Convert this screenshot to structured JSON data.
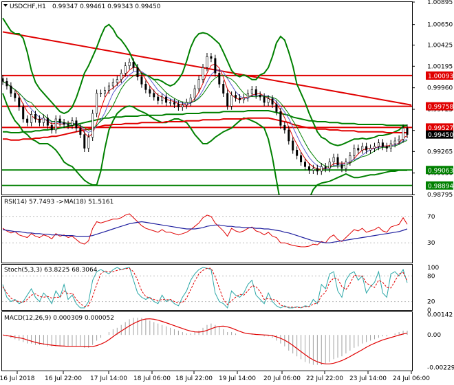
{
  "main_header": {
    "symbol": "USDCHF,H1",
    "values": "0.99347 0.99461 0.99343 0.99450"
  },
  "rsi_header": "RSI(14) 57.7493 ->MA(18) 51.5161",
  "stoch_header": "Stoch(5,3,3) 63.8225 68.3064",
  "macd_header": "MACD(12,26,9) 0.000309 0.000052",
  "colors": {
    "red": "#e00000",
    "green": "#008000",
    "black": "#000000",
    "blue": "#1f1f9f",
    "teal": "#2aa7a7"
  },
  "chart_data": [
    {
      "type": "line",
      "name": "price",
      "title": "USDCHF,H1 0.99347 0.99461 0.99343 0.99450",
      "y_ticks": [
        "1.00895",
        "1.00650",
        "1.00425",
        "1.00195",
        "0.99960",
        "0.99725",
        "0.99495",
        "0.99265",
        "0.99030",
        "0.98795"
      ],
      "ylim": [
        0.98795,
        1.00895
      ],
      "x_ticks": [
        "16 Jul 2018",
        "16 Jul 22:00",
        "17 Jul 14:00",
        "18 Jul 06:00",
        "18 Jul 22:00",
        "19 Jul 14:00",
        "20 Jul 06:00",
        "22 Jul 22:00",
        "23 Jul 14:00",
        "24 Jul 06:00"
      ],
      "price_tags": [
        {
          "value": "1.00093",
          "color": "#e00000"
        },
        {
          "value": "0.99758",
          "color": "#e00000"
        },
        {
          "value": "0.99527",
          "color": "#e00000"
        },
        {
          "value": "0.99450",
          "color": "#000000"
        },
        {
          "value": "0.99063",
          "color": "#008000"
        },
        {
          "value": "0.98894",
          "color": "#008000"
        }
      ],
      "horizontal_levels": [
        {
          "y": 1.00093,
          "color": "#e00000"
        },
        {
          "y": 0.99758,
          "color": "#e00000"
        },
        {
          "y": 0.99527,
          "color": "#e00000"
        },
        {
          "y": 0.99063,
          "color": "#008000"
        },
        {
          "y": 0.98894,
          "color": "#008000"
        }
      ],
      "trend_line": {
        "x": [
          0,
          100
        ],
        "y": [
          1.0057,
          0.9978
        ],
        "color": "#e00000"
      },
      "close": [
        1.0003,
        0.9998,
        0.999,
        0.9985,
        0.9975,
        0.9962,
        0.9958,
        0.9967,
        0.9962,
        0.9958,
        0.9963,
        0.9955,
        0.995,
        0.9962,
        0.9958,
        0.9956,
        0.9955,
        0.996,
        0.9952,
        0.9945,
        0.993,
        0.9942,
        0.9968,
        0.999,
        0.999,
        0.9993,
        0.9998,
        1.0002,
        1.0005,
        1.0012,
        1.002,
        1.0024,
        1.0018,
        1.0008,
        1.0,
        0.9994,
        0.999,
        0.9986,
        0.9982,
        0.9986,
        0.998,
        0.998,
        0.9978,
        0.9975,
        0.9977,
        0.998,
        0.9985,
        0.9995,
        1.0005,
        1.0018,
        1.003,
        1.0028,
        1.0012,
        1.0,
        0.999,
        0.9976,
        0.9988,
        0.9985,
        0.9983,
        0.9985,
        0.999,
        0.9994,
        0.9988,
        0.9986,
        0.998,
        0.9984,
        0.9978,
        0.997,
        0.9955,
        0.995,
        0.9938,
        0.9928,
        0.9922,
        0.9915,
        0.991,
        0.9906,
        0.9908,
        0.9905,
        0.991,
        0.9908,
        0.9915,
        0.992,
        0.9912,
        0.9908,
        0.9915,
        0.9922,
        0.993,
        0.9928,
        0.9932,
        0.9928,
        0.993,
        0.9932,
        0.9936,
        0.9932,
        0.993,
        0.9935,
        0.9938,
        0.994,
        0.9952,
        0.9945
      ],
      "bb_upper": [
        1.0072,
        1.0065,
        1.0058,
        1.0055,
        1.0055,
        1.005,
        1.0035,
        1.0015,
        1.0002,
        0.9995,
        0.999,
        0.9985,
        0.998,
        0.9975,
        0.997,
        0.9968,
        0.997,
        0.9975,
        0.9985,
        0.9998,
        1.0012,
        1.002,
        1.003,
        1.004,
        1.0052,
        1.0062,
        1.0065,
        1.006,
        1.0052,
        1.0048,
        1.0042,
        1.0035,
        1.0025,
        1.0018,
        1.0012,
        1.001,
        1.0008,
        1.0005,
        1.0005,
        1.0003,
        1.0,
        0.9998,
        1.0,
        1.0005,
        1.0012,
        1.0025,
        1.004,
        1.005,
        1.0055,
        1.0056,
        1.0055,
        1.0052,
        1.0048,
        1.0044,
        1.0035,
        1.0025,
        1.0015,
        1.001,
        1.0008,
        1.001,
        1.0008,
        1.0005,
        1.0005,
        1.001,
        1.0012,
        1.0018,
        1.003,
        1.0045,
        1.0052,
        1.0048,
        1.0035,
        1.002,
        1.0,
        0.999,
        0.998,
        0.9968,
        0.9958,
        0.9948,
        0.9942,
        0.994,
        0.9936,
        0.9934,
        0.9933,
        0.9934,
        0.9936,
        0.9938,
        0.994,
        0.994,
        0.9941,
        0.994,
        0.9941,
        0.9942,
        0.9944,
        0.9944,
        0.9945,
        0.9946,
        0.9948,
        0.995,
        0.9954,
        0.9955
      ],
      "bb_lower": [
        0.999,
        0.9978,
        0.9968,
        0.996,
        0.9955,
        0.9948,
        0.9945,
        0.994,
        0.9938,
        0.9935,
        0.9935,
        0.9935,
        0.9932,
        0.9928,
        0.9922,
        0.9915,
        0.9912,
        0.991,
        0.9905,
        0.99,
        0.9895,
        0.9892,
        0.989,
        0.989,
        0.9905,
        0.993,
        0.995,
        0.996,
        0.9968,
        0.9972,
        0.9975,
        0.9976,
        0.9975,
        0.9972,
        0.997,
        0.9968,
        0.9965,
        0.9962,
        0.996,
        0.9958,
        0.9958,
        0.996,
        0.9962,
        0.9962,
        0.996,
        0.9958,
        0.9952,
        0.9945,
        0.994,
        0.9935,
        0.9935,
        0.9938,
        0.9942,
        0.9945,
        0.9948,
        0.995,
        0.9952,
        0.9956,
        0.996,
        0.9963,
        0.9962,
        0.996,
        0.9958,
        0.9955,
        0.9952,
        0.994,
        0.992,
        0.9895,
        0.987,
        0.9855,
        0.9845,
        0.984,
        0.9838,
        0.9845,
        0.986,
        0.9875,
        0.9885,
        0.989,
        0.9892,
        0.9893,
        0.9894,
        0.9896,
        0.9898,
        0.99,
        0.9902,
        0.99,
        0.9898,
        0.9898,
        0.9899,
        0.99,
        0.9901,
        0.9901,
        0.9902,
        0.9903,
        0.9904,
        0.9905,
        0.9905,
        0.9906,
        0.9906,
        0.9906
      ],
      "ma_long": [
        0.9948,
        0.9948,
        0.9947,
        0.9947,
        0.9947,
        0.9948,
        0.9948,
        0.9948,
        0.9949,
        0.9949,
        0.995,
        0.995,
        0.9951,
        0.9951,
        0.9952,
        0.9953,
        0.9954,
        0.9955,
        0.9956,
        0.9957,
        0.9958,
        0.9959,
        0.996,
        0.9961,
        0.9962,
        0.9963,
        0.9963,
        0.9964,
        0.9964,
        0.9964,
        0.9965,
        0.9965,
        0.9965,
        0.9965,
        0.9966,
        0.9966,
        0.9966,
        0.9966,
        0.9966,
        0.9966,
        0.9967,
        0.9967,
        0.9967,
        0.9967,
        0.9967,
        0.9968,
        0.9968,
        0.9968,
        0.9968,
        0.9969,
        0.9969,
        0.9969,
        0.9969,
        0.9969,
        0.997,
        0.997,
        0.997,
        0.997,
        0.997,
        0.997,
        0.9971,
        0.9971,
        0.9971,
        0.9971,
        0.9971,
        0.9971,
        0.997,
        0.9969,
        0.9968,
        0.9967,
        0.9966,
        0.9964,
        0.9963,
        0.9962,
        0.9961,
        0.996,
        0.996,
        0.9959,
        0.9959,
        0.9959,
        0.9958,
        0.9958,
        0.9958,
        0.9957,
        0.9957,
        0.9957,
        0.9957,
        0.9956,
        0.9956,
        0.9956,
        0.9956,
        0.9956,
        0.9956,
        0.9956,
        0.9955,
        0.9955,
        0.9955,
        0.9955,
        0.9955,
        0.9955
      ]
    },
    {
      "type": "line",
      "name": "rsi",
      "title": "RSI(14) 57.7493 ->MA(18) 51.5161",
      "y_ticks": [
        "70",
        "30"
      ],
      "ylim": [
        0,
        100
      ],
      "rsi": [
        52,
        48,
        45,
        47,
        42,
        40,
        38,
        44,
        40,
        38,
        42,
        40,
        36,
        44,
        40,
        42,
        38,
        40,
        35,
        30,
        28,
        33,
        52,
        62,
        60,
        62,
        64,
        66,
        66,
        68,
        72,
        74,
        68,
        62,
        56,
        52,
        50,
        48,
        46,
        50,
        46,
        46,
        44,
        42,
        44,
        46,
        50,
        55,
        60,
        68,
        72,
        70,
        60,
        54,
        48,
        40,
        52,
        48,
        46,
        48,
        52,
        54,
        48,
        46,
        42,
        46,
        40,
        38,
        30,
        30,
        28,
        26,
        25,
        24,
        24,
        25,
        28,
        27,
        32,
        30,
        38,
        42,
        35,
        32,
        38,
        44,
        50,
        48,
        52,
        46,
        48,
        50,
        54,
        48,
        46,
        54,
        56,
        58,
        68,
        58
      ],
      "rsi_ma": [
        50,
        49,
        48,
        47,
        47,
        46,
        45,
        45,
        44,
        44,
        43,
        43,
        42,
        42,
        42,
        41,
        41,
        41,
        40,
        40,
        40,
        40,
        41,
        43,
        45,
        47,
        49,
        51,
        53,
        55,
        57,
        59,
        60,
        61,
        62,
        61,
        60,
        59,
        58,
        57,
        56,
        55,
        54,
        53,
        52,
        51,
        51,
        51,
        52,
        53,
        55,
        56,
        57,
        57,
        56,
        55,
        55,
        54,
        54,
        53,
        53,
        53,
        52,
        52,
        51,
        51,
        50,
        49,
        48,
        46,
        45,
        43,
        41,
        39,
        37,
        35,
        33,
        32,
        31,
        30,
        30,
        31,
        32,
        33,
        34,
        35,
        36,
        37,
        38,
        39,
        40,
        41,
        42,
        43,
        44,
        45,
        46,
        47,
        49,
        51
      ]
    },
    {
      "type": "line",
      "name": "stochastic",
      "title": "Stoch(5,3,3) 63.8225 68.3064",
      "y_ticks": [
        "100",
        "80",
        "20",
        "0"
      ],
      "ylim": [
        0,
        100
      ],
      "k": [
        60,
        30,
        20,
        25,
        15,
        20,
        35,
        50,
        30,
        20,
        40,
        30,
        15,
        45,
        30,
        60,
        25,
        35,
        15,
        5,
        5,
        20,
        70,
        90,
        95,
        90,
        85,
        95,
        100,
        95,
        98,
        100,
        70,
        40,
        30,
        25,
        30,
        20,
        15,
        35,
        20,
        25,
        15,
        10,
        30,
        45,
        70,
        85,
        95,
        100,
        98,
        95,
        40,
        20,
        15,
        5,
        45,
        35,
        30,
        40,
        60,
        70,
        35,
        25,
        15,
        40,
        20,
        10,
        5,
        10,
        5,
        5,
        8,
        5,
        10,
        8,
        25,
        15,
        60,
        50,
        85,
        90,
        45,
        30,
        70,
        85,
        90,
        70,
        80,
        40,
        55,
        65,
        90,
        40,
        30,
        85,
        90,
        80,
        95,
        64
      ],
      "d": [
        55,
        40,
        28,
        22,
        20,
        18,
        25,
        35,
        38,
        32,
        30,
        32,
        28,
        30,
        30,
        45,
        38,
        40,
        25,
        15,
        8,
        10,
        32,
        60,
        85,
        92,
        90,
        90,
        93,
        95,
        97,
        98,
        90,
        70,
        45,
        32,
        28,
        25,
        22,
        25,
        24,
        25,
        20,
        16,
        18,
        28,
        48,
        68,
        85,
        93,
        98,
        98,
        78,
        52,
        25,
        13,
        22,
        30,
        37,
        35,
        45,
        57,
        55,
        43,
        25,
        27,
        25,
        23,
        12,
        8,
        7,
        7,
        6,
        6,
        8,
        8,
        14,
        16,
        33,
        42,
        65,
        75,
        73,
        55,
        48,
        62,
        82,
        80,
        80,
        63,
        58,
        53,
        70,
        65,
        53,
        52,
        68,
        85,
        88,
        68
      ]
    },
    {
      "type": "bar",
      "name": "macd",
      "title": "MACD(12,26,9) 0.000309 0.000052",
      "y_ticks": [
        "0.00142",
        "0.00",
        "-0.00229"
      ],
      "ylim": [
        -0.0025,
        0.0016
      ],
      "macd": [
        0.0,
        -0.0001,
        -0.0002,
        -0.0003,
        -0.0004,
        -0.0005,
        -0.0006,
        -0.0006,
        -0.0007,
        -0.0007,
        -0.0007,
        -0.0008,
        -0.0008,
        -0.0008,
        -0.0008,
        -0.0008,
        -0.0008,
        -0.0008,
        -0.0008,
        -0.0008,
        -0.0009,
        -0.0009,
        -0.0007,
        -0.0004,
        -0.0002,
        0.0,
        0.0002,
        0.0004,
        0.0005,
        0.0007,
        0.0009,
        0.0011,
        0.0012,
        0.0012,
        0.0012,
        0.0011,
        0.001,
        0.0009,
        0.0008,
        0.0007,
        0.0006,
        0.0005,
        0.0004,
        0.0003,
        0.0002,
        0.0001,
        0.0001,
        0.0002,
        0.0003,
        0.0005,
        0.0007,
        0.0008,
        0.0007,
        0.0006,
        0.0004,
        0.0002,
        0.0002,
        0.0001,
        0.0,
        0.0,
        0.0,
        0.0001,
        0.0,
        0.0,
        -0.0001,
        -0.0001,
        -0.0002,
        -0.0004,
        -0.0006,
        -0.0008,
        -0.0011,
        -0.0013,
        -0.0015,
        -0.0017,
        -0.0019,
        -0.002,
        -0.0021,
        -0.0021,
        -0.0021,
        -0.002,
        -0.0019,
        -0.0017,
        -0.0016,
        -0.0015,
        -0.0013,
        -0.0011,
        -0.0009,
        -0.0008,
        -0.0006,
        -0.0005,
        -0.0004,
        -0.0003,
        -0.0002,
        -0.0001,
        -0.0001,
        0.0,
        0.0001,
        0.0002,
        0.0003,
        0.0003
      ],
      "signal_color": "#e00000"
    }
  ]
}
